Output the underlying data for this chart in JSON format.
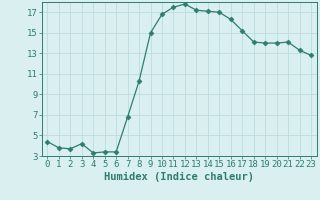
{
  "x": [
    0,
    1,
    2,
    3,
    4,
    5,
    6,
    7,
    8,
    9,
    10,
    11,
    12,
    13,
    14,
    15,
    16,
    17,
    18,
    19,
    20,
    21,
    22,
    23
  ],
  "y": [
    4.4,
    3.8,
    3.7,
    4.2,
    3.3,
    3.4,
    3.4,
    6.8,
    10.3,
    15.0,
    16.8,
    17.5,
    17.8,
    17.2,
    17.1,
    17.0,
    16.3,
    15.2,
    14.1,
    14.0,
    14.0,
    14.1,
    13.3,
    12.8
  ],
  "line_color": "#2e7d6e",
  "marker": "D",
  "marker_size": 2.5,
  "bg_color": "#daf0f0",
  "grid_color": "#b8d8d8",
  "xlabel": "Humidex (Indice chaleur)",
  "ylim": [
    3,
    18
  ],
  "xlim": [
    -0.5,
    23.5
  ],
  "yticks": [
    3,
    5,
    7,
    9,
    11,
    13,
    15,
    17
  ],
  "xticks": [
    0,
    1,
    2,
    3,
    4,
    5,
    6,
    7,
    8,
    9,
    10,
    11,
    12,
    13,
    14,
    15,
    16,
    17,
    18,
    19,
    20,
    21,
    22,
    23
  ],
  "xtick_labels": [
    "0",
    "1",
    "2",
    "3",
    "4",
    "5",
    "6",
    "7",
    "8",
    "9",
    "10",
    "11",
    "12",
    "13",
    "14",
    "15",
    "16",
    "17",
    "18",
    "19",
    "20",
    "21",
    "22",
    "23"
  ],
  "axis_color": "#2e7d6e",
  "tick_color": "#2e7d6e",
  "label_color": "#2e7d6e",
  "label_fontsize": 7.5,
  "tick_fontsize": 6.5
}
